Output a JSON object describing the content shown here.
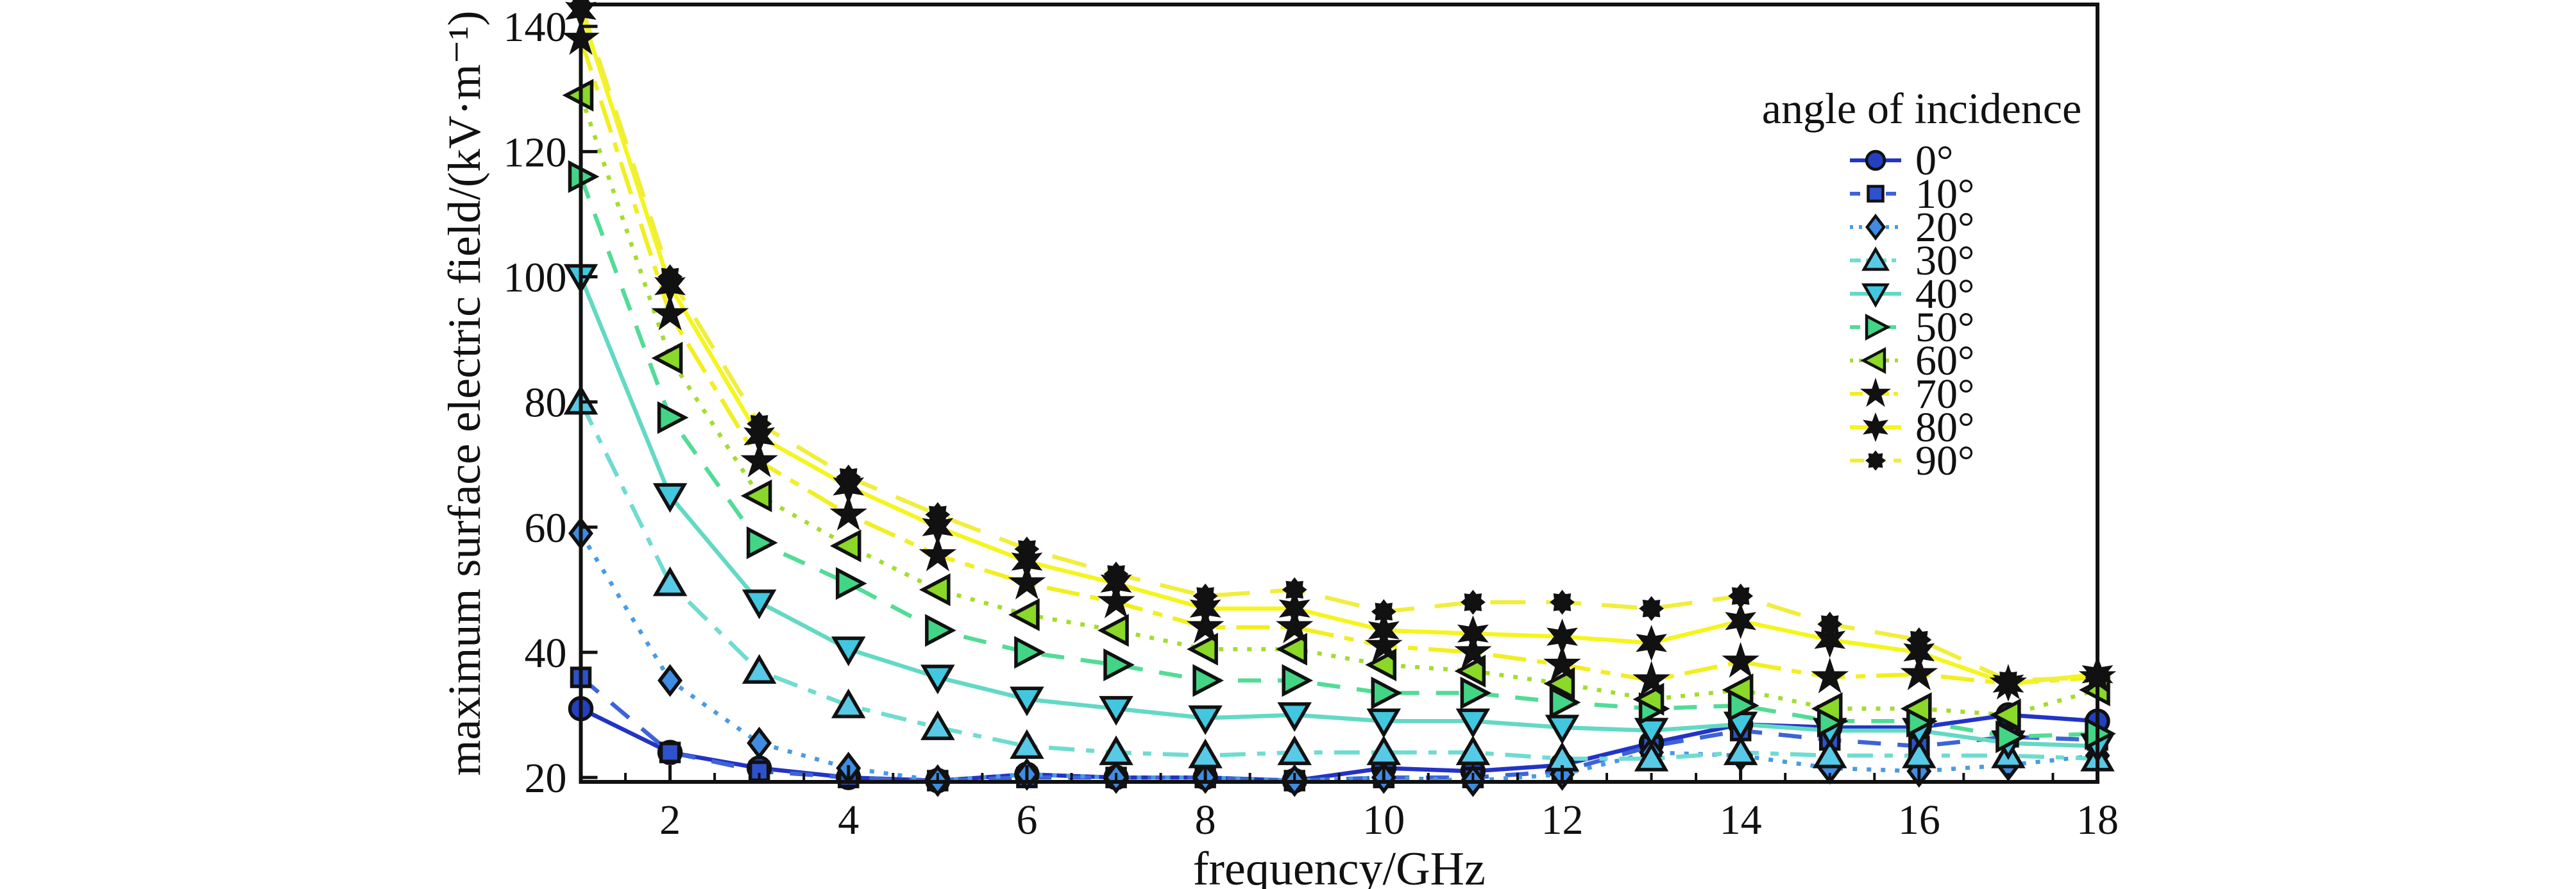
{
  "chart_data": {
    "type": "line",
    "title": "",
    "xlabel": "frequency/GHz",
    "ylabel": "maximum surface electric field/(kV·m⁻¹)",
    "legend_title": "angle of incidence",
    "legend_position": "upper right",
    "grid": false,
    "x": [
      1,
      2,
      3,
      4,
      5,
      6,
      7,
      8,
      9,
      10,
      11,
      12,
      13,
      14,
      15,
      16,
      17,
      18
    ],
    "xlim": [
      1,
      18
    ],
    "ylim": [
      19.3,
      143.5
    ],
    "xticks_major": [
      2,
      4,
      6,
      8,
      10,
      12,
      14,
      16,
      18
    ],
    "xtick_minor_step": 0.5,
    "yticks_major": [
      20,
      40,
      60,
      80,
      100,
      120,
      140
    ],
    "frame_color": "#111111",
    "background_color": "#ffffff",
    "series": [
      {
        "name": "0°",
        "line_style": "solid",
        "line_color": "#2333c6",
        "marker": "circle",
        "marker_fill": "#2440c0",
        "values": [
          31,
          24,
          21.5,
          20,
          19.5,
          20.5,
          20,
          20,
          19.5,
          21.5,
          21,
          22,
          25.5,
          28.5,
          28,
          28,
          30,
          29
        ]
      },
      {
        "name": "10°",
        "line_style": "dashed",
        "line_color": "#3e63d8",
        "marker": "square",
        "marker_fill": "#2e52cc",
        "values": [
          36,
          24,
          21,
          20,
          19.5,
          20,
          20,
          20,
          19.5,
          20,
          20,
          21,
          25,
          27.5,
          26,
          25,
          26.5,
          26
        ]
      },
      {
        "name": "20°",
        "line_style": "dotted",
        "line_color": "#4a9ae4",
        "marker": "diamond",
        "marker_fill": "#3f8ce2",
        "values": [
          59,
          35.5,
          25.5,
          21.5,
          19.5,
          20.5,
          20,
          20,
          19.5,
          20,
          19.5,
          20.5,
          24,
          23.5,
          21.5,
          21,
          22,
          23.5
        ]
      },
      {
        "name": "30°",
        "line_style": "dashdot",
        "line_color": "#6fdcd0",
        "marker": "triangle-up",
        "marker_fill": "#58c9e6",
        "values": [
          80,
          51,
          37,
          31.5,
          28,
          25,
          24,
          23.5,
          24,
          24,
          24,
          23,
          23,
          24,
          23.5,
          23.5,
          23.5,
          23
        ]
      },
      {
        "name": "40°",
        "line_style": "solid",
        "line_color": "#62d9c5",
        "marker": "triangle-down",
        "marker_fill": "#41c7e0",
        "values": [
          100,
          65,
          48,
          40.5,
          36,
          32.5,
          31,
          29.5,
          30,
          29,
          29,
          28,
          27.5,
          28.5,
          27.5,
          27.5,
          25.5,
          25
        ]
      },
      {
        "name": "50°",
        "line_style": "dashed",
        "line_color": "#52dc96",
        "marker": "triangle-right",
        "marker_fill": "#42d586",
        "values": [
          116,
          77.5,
          57.5,
          51,
          43.5,
          40,
          38,
          35.5,
          35.5,
          33.5,
          33.5,
          32,
          31,
          31.5,
          29,
          29,
          26.5,
          27
        ]
      },
      {
        "name": "60°",
        "line_style": "dotted",
        "line_color": "#a3dd2e",
        "marker": "triangle-left",
        "marker_fill": "#8ad827",
        "values": [
          129,
          87,
          65,
          57,
          50,
          46,
          43.5,
          40.5,
          40.5,
          38,
          37,
          35,
          32.5,
          34,
          31,
          31,
          30,
          34
        ]
      },
      {
        "name": "70°",
        "line_style": "dashdotdot",
        "line_color": "#f2ee20",
        "marker": "star5",
        "marker_fill": "#111111",
        "values": [
          138,
          94,
          70.5,
          62,
          55.5,
          51,
          48,
          44,
          44,
          41,
          40,
          38,
          35.5,
          38.5,
          36,
          36.5,
          35,
          36
        ]
      },
      {
        "name": "80°",
        "line_style": "solid",
        "line_color": "#f5f51c",
        "marker": "star6",
        "marker_fill": "#111111",
        "values": [
          142.5,
          98.5,
          74.5,
          66.5,
          60,
          54.5,
          51,
          47,
          47,
          43.5,
          43,
          42.5,
          41.5,
          45,
          42,
          40,
          35,
          36.5
        ]
      },
      {
        "name": "90°",
        "line_style": "longdash",
        "line_color": "#f0ee3c",
        "marker": "octostar",
        "marker_fill": "#111111",
        "values": [
          143.5,
          100,
          76.5,
          68,
          62,
          56.5,
          52.5,
          49,
          50,
          46.5,
          48,
          48,
          47,
          49,
          44.5,
          42,
          35.5,
          36
        ]
      }
    ]
  }
}
